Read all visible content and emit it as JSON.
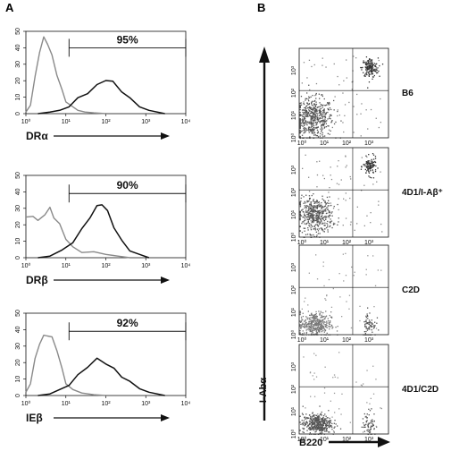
{
  "panel_a_label": "A",
  "panel_b_label": "B",
  "chart_data": [
    {
      "type": "line",
      "panel": "A",
      "xlabel": "DRα",
      "x_scale": "log",
      "xlim": [
        1,
        10000
      ],
      "ylim": [
        0,
        50
      ],
      "x_ticks": [
        "10⁰",
        "10¹",
        "10²",
        "10³",
        "10⁴"
      ],
      "y_ticks": [
        "0",
        "10",
        "20",
        "30",
        "40",
        "50"
      ],
      "gate": {
        "x_start": 12,
        "x_end": 10000,
        "y": 40,
        "label": "95%"
      },
      "series": [
        {
          "style": "gray",
          "x": [
            1,
            1.3,
            1.7,
            2.2,
            2.8,
            3.5,
            4.5,
            6,
            8,
            10,
            14,
            20,
            30,
            50,
            100
          ],
          "y": [
            1,
            6,
            22,
            38,
            46,
            43,
            35,
            24,
            14,
            8,
            4,
            2,
            1,
            0.5,
            0
          ]
        },
        {
          "style": "black",
          "x": [
            2,
            4,
            7,
            12,
            20,
            35,
            60,
            100,
            150,
            250,
            400,
            700,
            1200,
            3000
          ],
          "y": [
            0,
            1,
            2,
            5,
            9,
            13,
            17,
            21,
            19,
            14,
            9,
            5,
            2,
            0
          ]
        }
      ]
    },
    {
      "type": "line",
      "panel": "A",
      "xlabel": "DRβ",
      "x_scale": "log",
      "xlim": [
        1,
        10000
      ],
      "ylim": [
        0,
        50
      ],
      "x_ticks": [
        "10⁰",
        "10¹",
        "10²",
        "10³",
        "10⁴"
      ],
      "y_ticks": [
        "0",
        "10",
        "20",
        "30",
        "40",
        "50"
      ],
      "gate": {
        "x_start": 12,
        "x_end": 10000,
        "y": 39,
        "label": "90%"
      },
      "series": [
        {
          "style": "gray",
          "x": [
            1,
            1.5,
            2,
            3,
            4,
            5,
            7,
            10,
            15,
            25,
            50,
            100,
            200,
            400
          ],
          "y": [
            24,
            26,
            22,
            27,
            30,
            25,
            20,
            12,
            6,
            4,
            3,
            2,
            1,
            0
          ]
        },
        {
          "style": "black",
          "x": [
            2,
            4,
            8,
            15,
            25,
            40,
            60,
            80,
            110,
            160,
            250,
            400,
            700,
            1200
          ],
          "y": [
            0,
            1,
            4,
            10,
            17,
            25,
            31,
            33,
            28,
            19,
            10,
            5,
            2,
            0
          ]
        }
      ]
    },
    {
      "type": "line",
      "panel": "A",
      "xlabel": "IEβ",
      "x_scale": "log",
      "xlim": [
        1,
        10000
      ],
      "ylim": [
        0,
        50
      ],
      "x_ticks": [
        "10⁰",
        "10¹",
        "10²",
        "10³",
        "10⁴"
      ],
      "y_ticks": [
        "0",
        "10",
        "20",
        "30",
        "40",
        "50"
      ],
      "gate": {
        "x_start": 12,
        "x_end": 10000,
        "y": 39,
        "label": "92%"
      },
      "series": [
        {
          "style": "gray",
          "x": [
            1,
            1.3,
            1.7,
            2.2,
            2.8,
            3.5,
            4.5,
            6,
            8,
            10,
            15,
            25,
            50,
            100
          ],
          "y": [
            2,
            8,
            22,
            32,
            36,
            37,
            35,
            28,
            16,
            8,
            3,
            1.5,
            0.5,
            0
          ]
        },
        {
          "style": "black",
          "x": [
            2,
            4,
            7,
            12,
            20,
            35,
            60,
            100,
            160,
            250,
            400,
            700,
            1200,
            3000
          ],
          "y": [
            0,
            1,
            3,
            7,
            12,
            18,
            22,
            20,
            16,
            12,
            8,
            5,
            2,
            0
          ]
        }
      ]
    },
    {
      "type": "scatter",
      "panel": "B",
      "sample": "B6",
      "xlabel": "B220",
      "ylabel": "I-Abα",
      "x_scale": "log",
      "y_scale": "log",
      "xlim": [
        1,
        10000
      ],
      "ylim": [
        1,
        10000
      ],
      "ticks": [
        "10⁰",
        "10¹",
        "10²",
        "10³"
      ],
      "quadrant_x": 250,
      "quadrant_y": 130,
      "populations": [
        {
          "cx": 4,
          "cy": 8,
          "sx": 0.45,
          "sy": 0.45,
          "n": 520,
          "shade": "#555555"
        },
        {
          "cx": 1400,
          "cy": 1400,
          "sx": 0.18,
          "sy": 0.22,
          "n": 160,
          "shade": "#333333"
        },
        {
          "cx": 200,
          "cy": 50,
          "sx": 1.0,
          "sy": 1.0,
          "n": 60,
          "shade": "#888888"
        }
      ]
    },
    {
      "type": "scatter",
      "panel": "B",
      "sample": "4D1/I-Aβ⁺",
      "xlabel": "B220",
      "ylabel": "I-Abα",
      "x_scale": "log",
      "y_scale": "log",
      "xlim": [
        1,
        10000
      ],
      "ylim": [
        1,
        10000
      ],
      "ticks": [
        "10⁰",
        "10¹",
        "10²",
        "10³"
      ],
      "quadrant_x": 250,
      "quadrant_y": 130,
      "populations": [
        {
          "cx": 5,
          "cy": 10,
          "sx": 0.38,
          "sy": 0.4,
          "n": 440,
          "shade": "#555555"
        },
        {
          "cx": 1400,
          "cy": 1500,
          "sx": 0.15,
          "sy": 0.2,
          "n": 110,
          "shade": "#333333"
        },
        {
          "cx": 200,
          "cy": 60,
          "sx": 1.0,
          "sy": 1.0,
          "n": 70,
          "shade": "#888888"
        }
      ]
    },
    {
      "type": "scatter",
      "panel": "B",
      "sample": "C2D",
      "xlabel": "B220",
      "ylabel": "I-Abα",
      "x_scale": "log",
      "y_scale": "log",
      "xlim": [
        1,
        10000
      ],
      "ylim": [
        1,
        10000
      ],
      "ticks": [
        "10⁰",
        "10¹",
        "10²",
        "10³"
      ],
      "quadrant_x": 250,
      "quadrant_y": 130,
      "populations": [
        {
          "cx": 5,
          "cy": 3,
          "sx": 0.35,
          "sy": 0.28,
          "n": 380,
          "shade": "#777777"
        },
        {
          "cx": 1300,
          "cy": 3,
          "sx": 0.15,
          "sy": 0.3,
          "n": 70,
          "shade": "#555555"
        },
        {
          "cx": 150,
          "cy": 20,
          "sx": 1.0,
          "sy": 1.0,
          "n": 50,
          "shade": "#999999"
        }
      ]
    },
    {
      "type": "scatter",
      "panel": "B",
      "sample": "4D1/C2D",
      "xlabel": "B220",
      "ylabel": "I-Abα",
      "x_scale": "log",
      "y_scale": "log",
      "xlim": [
        1,
        10000
      ],
      "ylim": [
        1,
        10000
      ],
      "ticks": [
        "10⁰",
        "10¹",
        "10²",
        "10³"
      ],
      "quadrant_x": 250,
      "quadrant_y": 130,
      "populations": [
        {
          "cx": 6,
          "cy": 3,
          "sx": 0.32,
          "sy": 0.22,
          "n": 420,
          "shade": "#555555"
        },
        {
          "cx": 1300,
          "cy": 3,
          "sx": 0.15,
          "sy": 0.3,
          "n": 70,
          "shade": "#555555"
        },
        {
          "cx": 150,
          "cy": 20,
          "sx": 1.0,
          "sy": 1.0,
          "n": 50,
          "shade": "#999999"
        }
      ]
    }
  ],
  "colors": {
    "gray_series": "#8a8a8a",
    "black_series": "#111111",
    "axis": "#111111"
  }
}
